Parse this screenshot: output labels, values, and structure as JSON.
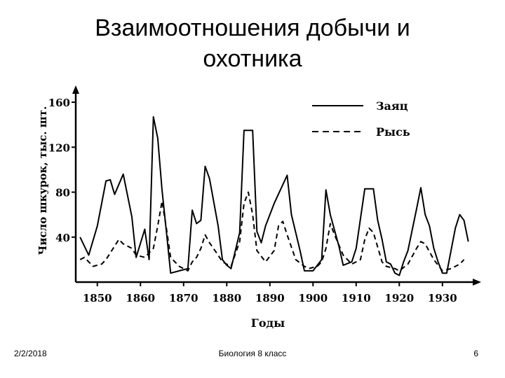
{
  "slide": {
    "title_line1": "Взаимоотношения добычи и",
    "title_line2": "охотника",
    "footer_date": "2/2/2018",
    "footer_center": "Биология 8 класс",
    "footer_page": "6"
  },
  "chart_data": {
    "type": "line",
    "title": "",
    "xlabel": "Годы",
    "ylabel": "Число шкурок, тыс. шт.",
    "xlim": [
      1845,
      1938
    ],
    "ylim": [
      0,
      165
    ],
    "x_ticks": [
      1850,
      1860,
      1870,
      1880,
      1890,
      1900,
      1910,
      1920,
      1930
    ],
    "y_ticks": [
      40,
      80,
      120,
      160
    ],
    "legend_position": "top-right",
    "series": [
      {
        "name": "Заяц",
        "style": "solid",
        "color": "#000000",
        "points": [
          [
            1846,
            40
          ],
          [
            1848,
            24
          ],
          [
            1850,
            50
          ],
          [
            1852,
            90
          ],
          [
            1853,
            91
          ],
          [
            1854,
            78
          ],
          [
            1856,
            96
          ],
          [
            1858,
            58
          ],
          [
            1859,
            22
          ],
          [
            1861,
            47
          ],
          [
            1862,
            20
          ],
          [
            1863,
            147
          ],
          [
            1864,
            128
          ],
          [
            1865,
            82
          ],
          [
            1866,
            45
          ],
          [
            1867,
            8
          ],
          [
            1869,
            10
          ],
          [
            1871,
            12
          ],
          [
            1872,
            64
          ],
          [
            1873,
            52
          ],
          [
            1874,
            55
          ],
          [
            1875,
            103
          ],
          [
            1876,
            92
          ],
          [
            1878,
            50
          ],
          [
            1879,
            20
          ],
          [
            1880,
            15
          ],
          [
            1881,
            12
          ],
          [
            1883,
            44
          ],
          [
            1884,
            135
          ],
          [
            1886,
            135
          ],
          [
            1887,
            45
          ],
          [
            1888,
            35
          ],
          [
            1889,
            50
          ],
          [
            1891,
            70
          ],
          [
            1894,
            95
          ],
          [
            1895,
            60
          ],
          [
            1897,
            28
          ],
          [
            1898,
            10
          ],
          [
            1900,
            10
          ],
          [
            1902,
            20
          ],
          [
            1903,
            82
          ],
          [
            1904,
            60
          ],
          [
            1906,
            32
          ],
          [
            1907,
            15
          ],
          [
            1909,
            18
          ],
          [
            1910,
            30
          ],
          [
            1912,
            83
          ],
          [
            1914,
            83
          ],
          [
            1915,
            55
          ],
          [
            1916,
            38
          ],
          [
            1917,
            18
          ],
          [
            1918,
            16
          ],
          [
            1919,
            8
          ],
          [
            1920,
            6
          ],
          [
            1921,
            18
          ],
          [
            1922,
            28
          ],
          [
            1924,
            65
          ],
          [
            1925,
            84
          ],
          [
            1926,
            60
          ],
          [
            1927,
            50
          ],
          [
            1928,
            30
          ],
          [
            1929,
            18
          ],
          [
            1930,
            8
          ],
          [
            1931,
            8
          ],
          [
            1933,
            48
          ],
          [
            1934,
            60
          ],
          [
            1935,
            55
          ],
          [
            1936,
            36
          ]
        ]
      },
      {
        "name": "Рысь",
        "style": "dashed",
        "color": "#000000",
        "points": [
          [
            1846,
            20
          ],
          [
            1847,
            22
          ],
          [
            1848,
            18
          ],
          [
            1849,
            14
          ],
          [
            1851,
            16
          ],
          [
            1852,
            20
          ],
          [
            1854,
            32
          ],
          [
            1855,
            38
          ],
          [
            1856,
            34
          ],
          [
            1858,
            30
          ],
          [
            1859,
            24
          ],
          [
            1861,
            22
          ],
          [
            1863,
            30
          ],
          [
            1864,
            50
          ],
          [
            1865,
            72
          ],
          [
            1866,
            48
          ],
          [
            1867,
            22
          ],
          [
            1869,
            14
          ],
          [
            1871,
            10
          ],
          [
            1872,
            18
          ],
          [
            1873,
            22
          ],
          [
            1874,
            30
          ],
          [
            1875,
            42
          ],
          [
            1876,
            35
          ],
          [
            1878,
            24
          ],
          [
            1879,
            18
          ],
          [
            1881,
            14
          ],
          [
            1883,
            36
          ],
          [
            1884,
            70
          ],
          [
            1885,
            80
          ],
          [
            1886,
            60
          ],
          [
            1887,
            28
          ],
          [
            1889,
            18
          ],
          [
            1891,
            28
          ],
          [
            1892,
            50
          ],
          [
            1893,
            54
          ],
          [
            1894,
            42
          ],
          [
            1896,
            20
          ],
          [
            1898,
            14
          ],
          [
            1899,
            12
          ],
          [
            1901,
            14
          ],
          [
            1902,
            18
          ],
          [
            1903,
            30
          ],
          [
            1904,
            52
          ],
          [
            1905,
            42
          ],
          [
            1907,
            24
          ],
          [
            1909,
            16
          ],
          [
            1911,
            20
          ],
          [
            1912,
            38
          ],
          [
            1913,
            48
          ],
          [
            1914,
            44
          ],
          [
            1916,
            18
          ],
          [
            1917,
            14
          ],
          [
            1919,
            12
          ],
          [
            1920,
            10
          ],
          [
            1922,
            16
          ],
          [
            1924,
            30
          ],
          [
            1925,
            36
          ],
          [
            1926,
            34
          ],
          [
            1928,
            20
          ],
          [
            1930,
            10
          ],
          [
            1932,
            12
          ],
          [
            1934,
            16
          ],
          [
            1935,
            20
          ]
        ]
      }
    ]
  }
}
